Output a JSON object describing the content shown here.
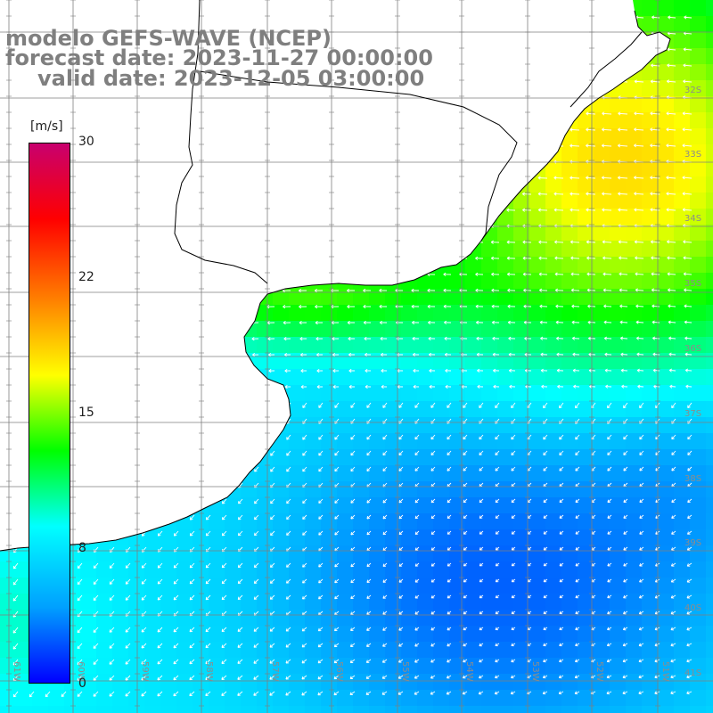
{
  "title": {
    "line1": "modelo GEFS-WAVE (NCEP)",
    "line2": "forecast date: 2023-11-27 00:00:00",
    "line3": "valid date: 2023-12-05 03:00:00"
  },
  "colorbar": {
    "unit": "[m/s]",
    "ticks": [
      {
        "label": "30",
        "value": 30
      },
      {
        "label": "22",
        "value": 22
      },
      {
        "label": "15",
        "value": 15
      },
      {
        "label": "8",
        "value": 8
      },
      {
        "label": "0",
        "value": 0
      }
    ],
    "colors": [
      "#0000ff",
      "#00a0ff",
      "#00ffff",
      "#00ff00",
      "#ffff00",
      "#ff8000",
      "#ff0000",
      "#c8006e"
    ]
  },
  "latitude_labels": [
    "32S",
    "33S",
    "34S",
    "35S",
    "36S",
    "37S",
    "38S",
    "39S",
    "40S",
    "41S"
  ],
  "longitude_labels": [
    "61W",
    "60W",
    "59W",
    "58W",
    "57W",
    "56W",
    "55W",
    "54W",
    "53W",
    "52W",
    "51W"
  ],
  "colors": {
    "land": "#ffffff",
    "grid": "#7f7f7f",
    "coast": "#000000",
    "arrows": "#ffffff",
    "title": "#7f7f7f"
  }
}
